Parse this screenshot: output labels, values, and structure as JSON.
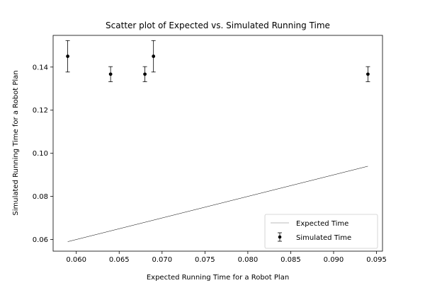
{
  "chart_data": {
    "type": "scatter",
    "title": "Scatter plot of Expected vs. Simulated Running Time",
    "xlabel": "Expected Running Time for a Robot Plan",
    "ylabel": "Simulated Running Time for a Robot Plan",
    "xlim": [
      0.0573,
      0.0957
    ],
    "ylim": [
      0.0546,
      0.1547
    ],
    "xticks": [
      0.06,
      0.065,
      0.07,
      0.075,
      0.08,
      0.085,
      0.09,
      0.095
    ],
    "xtick_labels": [
      "0.060",
      "0.065",
      "0.070",
      "0.075",
      "0.080",
      "0.085",
      "0.090",
      "0.095"
    ],
    "yticks": [
      0.06,
      0.08,
      0.1,
      0.12,
      0.14
    ],
    "ytick_labels": [
      "0.06",
      "0.08",
      "0.10",
      "0.12",
      "0.14"
    ],
    "grid": false,
    "legend_position": "bottom-right",
    "series": [
      {
        "name": "Expected Time",
        "kind": "line",
        "color": "#000000",
        "x": [
          0.059,
          0.094
        ],
        "y": [
          0.059,
          0.094
        ]
      },
      {
        "name": "Simulated Time",
        "kind": "errorbar",
        "color": "#000000",
        "x": [
          0.059,
          0.064,
          0.068,
          0.069,
          0.094
        ],
        "y": [
          0.145,
          0.1367,
          0.1367,
          0.145,
          0.1367
        ],
        "yerr": [
          0.0073,
          0.0035,
          0.0035,
          0.0073,
          0.0035
        ]
      }
    ]
  }
}
